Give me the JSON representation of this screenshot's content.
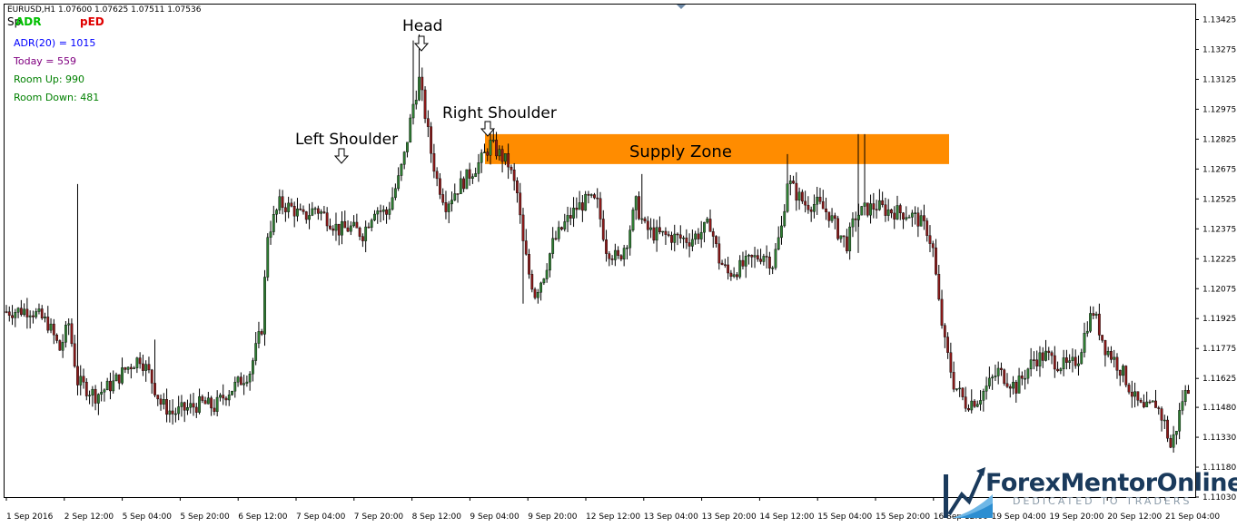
{
  "colors": {
    "bull": "#2e7d32",
    "bear": "#8b1a1a",
    "zone": "#ff8c00",
    "axis": "#000000",
    "adr": "#0000ff",
    "today": "#800080",
    "room_up": "#008000",
    "room_down": "#008000"
  },
  "header": {
    "symbol_line": "EURUSD,H1  1.07600 1.07625 1.07511 1.07536",
    "indicator_a": "Sp",
    "indicator_b": "ADR",
    "indicator_c": "pED"
  },
  "stats": {
    "adr": "ADR(20) = 1015",
    "today": "Today = 559",
    "room_up": "Room Up: 990",
    "room_down": "Room Down: 481"
  },
  "annotations": {
    "left_shoulder": "Left Shoulder",
    "head": "Head",
    "right_shoulder": "Right Shoulder",
    "supply_zone": "Supply Zone"
  },
  "logo": {
    "name": "ForexMentorOnline",
    "tagline": "DEDICATED TO TRADERS"
  },
  "chart_data": {
    "type": "candlestick",
    "symbol": "EURUSD",
    "timeframe": "H1",
    "ylim": [
      1.1103,
      1.135
    ],
    "y_ticks": [
      "1.13425",
      "1.13275",
      "1.13125",
      "1.12975",
      "1.12825",
      "1.12675",
      "1.12525",
      "1.12375",
      "1.12225",
      "1.12075",
      "1.11925",
      "1.11775",
      "1.11625",
      "1.11480",
      "1.11330",
      "1.11180",
      "1.11030"
    ],
    "x_ticks": [
      "1 Sep 2016",
      "2 Sep 12:00",
      "5 Sep 04:00",
      "5 Sep 20:00",
      "6 Sep 12:00",
      "7 Sep 04:00",
      "7 Sep 20:00",
      "8 Sep 12:00",
      "9 Sep 04:00",
      "9 Sep 20:00",
      "12 Sep 12:00",
      "13 Sep 04:00",
      "13 Sep 20:00",
      "14 Sep 12:00",
      "15 Sep 04:00",
      "15 Sep 20:00",
      "16 Sep 12:00",
      "19 Sep 04:00",
      "19 Sep 20:00",
      "20 Sep 12:00",
      "21 Sep 04:00"
    ],
    "grid": false,
    "supply_zone": {
      "from": 1.127,
      "to": 1.1285
    },
    "series": [
      {
        "key": "waypoints",
        "values": [
          [
            0,
            1.1196
          ],
          [
            8,
            1.1197
          ],
          [
            14,
            1.119
          ],
          [
            18,
            1.1177
          ],
          [
            21,
            1.119
          ],
          [
            24,
            1.1161
          ],
          [
            30,
            1.1154
          ],
          [
            36,
            1.116
          ],
          [
            40,
            1.1167
          ],
          [
            45,
            1.1173
          ],
          [
            48,
            1.1165
          ],
          [
            52,
            1.115
          ],
          [
            56,
            1.1145
          ],
          [
            62,
            1.1148
          ],
          [
            66,
            1.115
          ],
          [
            70,
            1.1148
          ],
          [
            74,
            1.1155
          ],
          [
            78,
            1.116
          ],
          [
            82,
            1.1166
          ],
          [
            86,
            1.1188
          ],
          [
            88,
            1.1235
          ],
          [
            92,
            1.125
          ],
          [
            96,
            1.1248
          ],
          [
            100,
            1.1243
          ],
          [
            104,
            1.1248
          ],
          [
            108,
            1.1243
          ],
          [
            112,
            1.1237
          ],
          [
            116,
            1.1238
          ],
          [
            120,
            1.1235
          ],
          [
            124,
            1.1248
          ],
          [
            128,
            1.1245
          ],
          [
            132,
            1.1262
          ],
          [
            134,
            1.1274
          ],
          [
            137,
            1.13
          ],
          [
            139,
            1.1312
          ],
          [
            141,
            1.1295
          ],
          [
            143,
            1.1276
          ],
          [
            145,
            1.1262
          ],
          [
            148,
            1.125
          ],
          [
            152,
            1.1258
          ],
          [
            156,
            1.1265
          ],
          [
            160,
            1.1272
          ],
          [
            163,
            1.128
          ],
          [
            166,
            1.1275
          ],
          [
            169,
            1.127
          ],
          [
            172,
            1.1255
          ],
          [
            174,
            1.123
          ],
          [
            176,
            1.1215
          ],
          [
            178,
            1.1205
          ],
          [
            181,
            1.1215
          ],
          [
            184,
            1.123
          ],
          [
            188,
            1.124
          ],
          [
            192,
            1.1248
          ],
          [
            196,
            1.1252
          ],
          [
            199,
            1.125
          ],
          [
            202,
            1.1228
          ],
          [
            206,
            1.1222
          ],
          [
            209,
            1.1232
          ],
          [
            212,
            1.125
          ],
          [
            215,
            1.1238
          ],
          [
            218,
            1.1235
          ],
          [
            222,
            1.1234
          ],
          [
            226,
            1.1233
          ],
          [
            230,
            1.1232
          ],
          [
            234,
            1.1236
          ],
          [
            237,
            1.124
          ],
          [
            240,
            1.1222
          ],
          [
            243,
            1.1215
          ],
          [
            247,
            1.1218
          ],
          [
            251,
            1.1222
          ],
          [
            255,
            1.1225
          ],
          [
            258,
            1.122
          ],
          [
            261,
            1.1238
          ],
          [
            263,
            1.1262
          ],
          [
            266,
            1.1255
          ],
          [
            269,
            1.125
          ],
          [
            273,
            1.125
          ],
          [
            277,
            1.1245
          ],
          [
            280,
            1.1236
          ],
          [
            283,
            1.123
          ],
          [
            286,
            1.1244
          ],
          [
            289,
            1.1247
          ],
          [
            293,
            1.1249
          ],
          [
            296,
            1.1247
          ],
          [
            300,
            1.1246
          ],
          [
            304,
            1.1245
          ],
          [
            307,
            1.1242
          ],
          [
            310,
            1.1237
          ],
          [
            312,
            1.1227
          ],
          [
            314,
            1.12
          ],
          [
            316,
            1.118
          ],
          [
            319,
            1.116
          ],
          [
            323,
            1.115
          ],
          [
            327,
            1.1152
          ],
          [
            330,
            1.1158
          ],
          [
            334,
            1.1166
          ],
          [
            337,
            1.1162
          ],
          [
            340,
            1.1158
          ],
          [
            343,
            1.1165
          ],
          [
            346,
            1.1172
          ],
          [
            350,
            1.1174
          ],
          [
            354,
            1.117
          ],
          [
            358,
            1.1168
          ],
          [
            361,
            1.1173
          ],
          [
            364,
            1.119
          ],
          [
            366,
            1.1196
          ],
          [
            368,
            1.1187
          ],
          [
            370,
            1.1178
          ],
          [
            373,
            1.1172
          ],
          [
            376,
            1.1165
          ],
          [
            380,
            1.1152
          ],
          [
            383,
            1.1146
          ],
          [
            387,
            1.115
          ],
          [
            390,
            1.114
          ],
          [
            392,
            1.1128
          ],
          [
            394,
            1.1138
          ],
          [
            396,
            1.1152
          ],
          [
            398,
            1.1158
          ]
        ]
      }
    ]
  }
}
